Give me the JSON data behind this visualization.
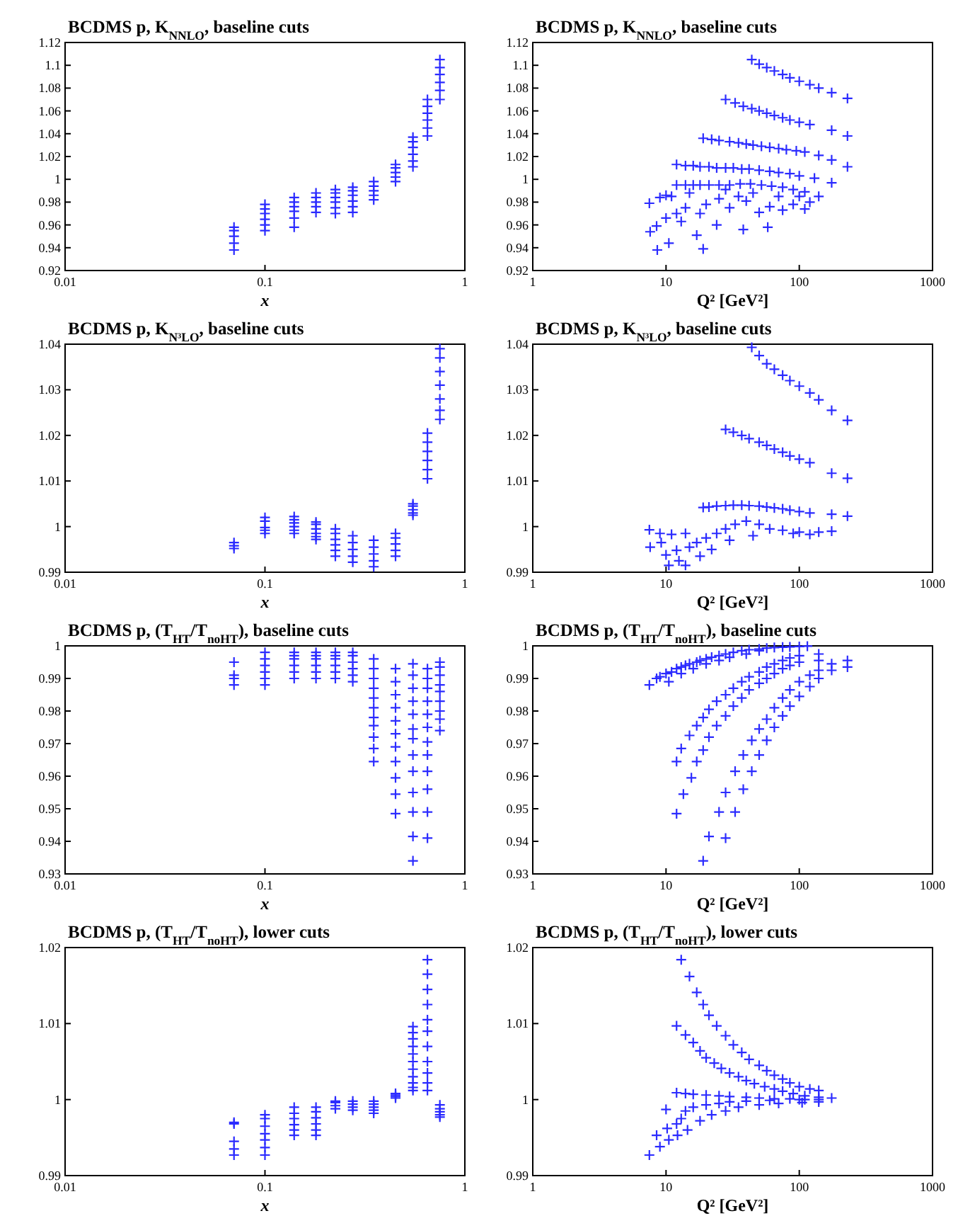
{
  "chart_data": [
    {
      "type": "scatter",
      "title": "BCDMS p, K$_{NNLO}$, baseline cuts",
      "xlabel": "x",
      "log": "x",
      "marker": "cross",
      "color": "#2b2bff",
      "xlim": [
        0.01,
        1
      ],
      "xticks": [
        0.01,
        0.1,
        1
      ],
      "ylim": [
        0.92,
        1.12
      ],
      "yticks": [
        0.92,
        0.94,
        0.96,
        0.98,
        1,
        1.02,
        1.04,
        1.06,
        1.08,
        1.1,
        1.12
      ],
      "x": [
        0.07,
        0.07,
        0.07,
        0.07,
        0.07,
        0.1,
        0.1,
        0.1,
        0.1,
        0.1,
        0.1,
        0.14,
        0.14,
        0.14,
        0.14,
        0.14,
        0.14,
        0.18,
        0.18,
        0.18,
        0.18,
        0.18,
        0.225,
        0.225,
        0.225,
        0.225,
        0.225,
        0.225,
        0.275,
        0.275,
        0.275,
        0.275,
        0.275,
        0.275,
        0.35,
        0.35,
        0.35,
        0.35,
        0.35,
        0.45,
        0.45,
        0.45,
        0.45,
        0.45,
        0.55,
        0.55,
        0.55,
        0.55,
        0.55,
        0.55,
        0.65,
        0.65,
        0.65,
        0.65,
        0.65,
        0.65,
        0.75,
        0.75,
        0.75,
        0.75,
        0.75,
        0.75
      ],
      "values": [
        0.938,
        0.944,
        0.95,
        0.955,
        0.958,
        0.955,
        0.96,
        0.965,
        0.97,
        0.974,
        0.978,
        0.958,
        0.966,
        0.972,
        0.976,
        0.98,
        0.984,
        0.971,
        0.976,
        0.98,
        0.984,
        0.988,
        0.97,
        0.975,
        0.98,
        0.984,
        0.988,
        0.991,
        0.971,
        0.976,
        0.981,
        0.986,
        0.99,
        0.993,
        0.982,
        0.986,
        0.99,
        0.994,
        0.998,
        0.998,
        1.002,
        1.006,
        1.01,
        1.013,
        1.011,
        1.016,
        1.022,
        1.028,
        1.033,
        1.037,
        1.038,
        1.045,
        1.052,
        1.058,
        1.064,
        1.07,
        1.07,
        1.078,
        1.085,
        1.092,
        1.098,
        1.105
      ]
    },
    {
      "type": "scatter",
      "title": "BCDMS p, K$_{NNLO}$, baseline cuts",
      "xlabel": "Q² [GeV²]",
      "log": "x",
      "marker": "cross",
      "color": "#2b2bff",
      "xlim": [
        1,
        1000
      ],
      "xticks": [
        1,
        10,
        100,
        1000
      ],
      "ylim": [
        0.92,
        1.12
      ],
      "yticks": [
        0.92,
        0.94,
        0.96,
        0.98,
        1,
        1.02,
        1.04,
        1.06,
        1.08,
        1.1,
        1.12
      ],
      "x": [
        44,
        50,
        57,
        65,
        75,
        85,
        100,
        120,
        140,
        175,
        230,
        28,
        33,
        38,
        44,
        50,
        57,
        65,
        75,
        85,
        100,
        120,
        175,
        230,
        19,
        22,
        25,
        30,
        35,
        40,
        45,
        52,
        60,
        70,
        80,
        95,
        110,
        140,
        175,
        230,
        12,
        14,
        16,
        18,
        21,
        24,
        28,
        32,
        37,
        42,
        50,
        60,
        70,
        85,
        100,
        130,
        175,
        10,
        12,
        14,
        16,
        18,
        21,
        25,
        30,
        36,
        43,
        52,
        62,
        75,
        90,
        110,
        140,
        7.5,
        7.6,
        8.5,
        8.6,
        9,
        10,
        10.5,
        11,
        12,
        13,
        14,
        15,
        17,
        18,
        19,
        20,
        24,
        25,
        30,
        38,
        40,
        50,
        58,
        60,
        75,
        90,
        110,
        120,
        45,
        28,
        35,
        70,
        100
      ],
      "values": [
        1.105,
        1.101,
        1.098,
        1.095,
        1.092,
        1.089,
        1.086,
        1.083,
        1.08,
        1.076,
        1.071,
        1.07,
        1.067,
        1.064,
        1.062,
        1.06,
        1.058,
        1.056,
        1.054,
        1.052,
        1.05,
        1.048,
        1.043,
        1.038,
        1.036,
        1.035,
        1.034,
        1.033,
        1.032,
        1.031,
        1.03,
        1.029,
        1.028,
        1.027,
        1.026,
        1.025,
        1.024,
        1.021,
        1.017,
        1.011,
        1.013,
        1.012,
        1.012,
        1.011,
        1.011,
        1.01,
        1.01,
        1.01,
        1.009,
        1.009,
        1.008,
        1.007,
        1.006,
        1.005,
        1.003,
        1.001,
        0.997,
        0.986,
        0.995,
        0.995,
        0.995,
        0.995,
        0.995,
        0.995,
        0.995,
        0.996,
        0.996,
        0.995,
        0.994,
        0.993,
        0.991,
        0.989,
        0.985,
        0.979,
        0.954,
        0.959,
        0.938,
        0.984,
        0.966,
        0.944,
        0.985,
        0.97,
        0.963,
        0.975,
        0.988,
        0.951,
        0.97,
        0.939,
        0.978,
        0.96,
        0.983,
        0.975,
        0.956,
        0.981,
        0.971,
        0.958,
        0.976,
        0.973,
        0.978,
        0.974,
        0.98,
        0.988,
        0.991,
        0.985,
        0.985,
        0.985
      ]
    },
    {
      "type": "scatter",
      "title": "BCDMS p, K$_{N³LO}$, baseline cuts",
      "xlabel": "x",
      "log": "x",
      "marker": "cross",
      "color": "#2b2bff",
      "xlim": [
        0.01,
        1
      ],
      "xticks": [
        0.01,
        0.1,
        1
      ],
      "ylim": [
        0.99,
        1.04
      ],
      "yticks": [
        0.99,
        1,
        1.01,
        1.02,
        1.03,
        1.04
      ],
      "x": [
        0.07,
        0.07,
        0.07,
        0.1,
        0.1,
        0.1,
        0.1,
        0.1,
        0.14,
        0.14,
        0.14,
        0.14,
        0.14,
        0.14,
        0.18,
        0.18,
        0.18,
        0.18,
        0.18,
        0.18,
        0.225,
        0.225,
        0.225,
        0.225,
        0.225,
        0.225,
        0.275,
        0.275,
        0.275,
        0.275,
        0.275,
        0.35,
        0.35,
        0.35,
        0.35,
        0.35,
        0.45,
        0.45,
        0.45,
        0.45,
        0.45,
        0.55,
        0.55,
        0.55,
        0.55,
        0.55,
        0.65,
        0.65,
        0.65,
        0.65,
        0.65,
        0.65,
        0.75,
        0.75,
        0.75,
        0.75,
        0.75,
        0.75,
        0.75
      ],
      "values": [
        0.9952,
        0.9958,
        0.9965,
        0.9985,
        0.9992,
        0.9998,
        1.0012,
        1.002,
        0.9985,
        0.9992,
        1,
        1.0008,
        1.0015,
        1.0022,
        0.9972,
        0.9978,
        0.9985,
        0.9995,
        1.0005,
        1.001,
        0.9935,
        0.9948,
        0.996,
        0.9972,
        0.9985,
        0.9995,
        0.9922,
        0.9935,
        0.995,
        0.9965,
        0.998,
        0.9912,
        0.9925,
        0.994,
        0.9955,
        0.997,
        0.9935,
        0.9948,
        0.9962,
        0.9975,
        0.9985,
        1.0025,
        1.003,
        1.0037,
        1.0045,
        1.005,
        1.0105,
        1.0125,
        1.0145,
        1.0165,
        1.0185,
        1.0205,
        1.0235,
        1.0255,
        1.028,
        1.031,
        1.034,
        1.037,
        1.039
      ]
    },
    {
      "type": "scatter",
      "title": "BCDMS p, K$_{N³LO}$, baseline cuts",
      "xlabel": "Q² [GeV²]",
      "log": "x",
      "marker": "cross",
      "color": "#2b2bff",
      "xlim": [
        1,
        1000
      ],
      "xticks": [
        1,
        10,
        100,
        1000
      ],
      "ylim": [
        0.99,
        1.04
      ],
      "yticks": [
        0.99,
        1,
        1.01,
        1.02,
        1.03,
        1.04
      ],
      "x": [
        44,
        50,
        57,
        65,
        75,
        85,
        100,
        120,
        140,
        175,
        230,
        28,
        32,
        37,
        42,
        50,
        57,
        65,
        75,
        85,
        100,
        120,
        175,
        230,
        19,
        21,
        24,
        28,
        32,
        37,
        42,
        50,
        57,
        65,
        75,
        85,
        100,
        120,
        175,
        230,
        7.5,
        7.6,
        9,
        9.2,
        10,
        10.5,
        11,
        12,
        12.5,
        14,
        15,
        17,
        20,
        24,
        28,
        33,
        40,
        50,
        60,
        75,
        100,
        140,
        175,
        30,
        45,
        90,
        120,
        14,
        18,
        22
      ],
      "values": [
        1.0393,
        1.0375,
        1.0357,
        1.0345,
        1.0332,
        1.032,
        1.0308,
        1.0293,
        1.0278,
        1.0255,
        1.0233,
        1.0213,
        1.0207,
        1.02,
        1.0193,
        1.0185,
        1.0178,
        1.017,
        1.0163,
        1.0155,
        1.0148,
        1.014,
        1.0117,
        1.0106,
        1.0042,
        1.0043,
        1.0045,
        1.0046,
        1.0047,
        1.0047,
        1.0046,
        1.0045,
        1.0043,
        1.0041,
        1.0039,
        1.0036,
        1.0033,
        1.003,
        1.0027,
        1.0023,
        0.9993,
        0.9955,
        0.9985,
        0.9965,
        0.9938,
        0.9915,
        0.9983,
        0.9948,
        0.9925,
        0.9985,
        0.9955,
        0.9965,
        0.9975,
        0.9985,
        0.9995,
        1.0005,
        1.0012,
        1.0005,
        0.9995,
        0.9992,
        0.9988,
        0.9988,
        0.999,
        0.997,
        0.998,
        0.9985,
        0.9983,
        0.9915,
        0.9935,
        0.995
      ]
    },
    {
      "type": "scatter",
      "title": "BCDMS p, (T$_{HT}$/T$_{noHT}$), baseline cuts",
      "xlabel": "x",
      "log": "x",
      "marker": "cross",
      "color": "#2b2bff",
      "xlim": [
        0.01,
        1
      ],
      "xticks": [
        0.01,
        0.1,
        1
      ],
      "ylim": [
        0.93,
        1
      ],
      "yticks": [
        0.93,
        0.94,
        0.95,
        0.96,
        0.97,
        0.98,
        0.99,
        1
      ],
      "x": [
        0.07,
        0.07,
        0.07,
        0.07,
        0.1,
        0.1,
        0.1,
        0.1,
        0.1,
        0.1,
        0.14,
        0.14,
        0.14,
        0.14,
        0.14,
        0.14,
        0.18,
        0.18,
        0.18,
        0.18,
        0.18,
        0.18,
        0.225,
        0.225,
        0.225,
        0.225,
        0.225,
        0.225,
        0.275,
        0.275,
        0.275,
        0.275,
        0.275,
        0.275,
        0.35,
        0.35,
        0.35,
        0.35,
        0.35,
        0.35,
        0.35,
        0.35,
        0.35,
        0.35,
        0.35,
        0.45,
        0.45,
        0.45,
        0.45,
        0.45,
        0.45,
        0.45,
        0.45,
        0.45,
        0.45,
        0.45,
        0.55,
        0.55,
        0.55,
        0.55,
        0.55,
        0.55,
        0.55,
        0.55,
        0.55,
        0.55,
        0.55,
        0.55,
        0.55,
        0.65,
        0.65,
        0.65,
        0.65,
        0.65,
        0.65,
        0.65,
        0.65,
        0.65,
        0.65,
        0.65,
        0.65,
        0.75,
        0.75,
        0.75,
        0.75,
        0.75,
        0.75,
        0.75,
        0.75,
        0.75
      ],
      "values": [
        0.988,
        0.99,
        0.991,
        0.995,
        0.988,
        0.99,
        0.992,
        0.994,
        0.996,
        0.998,
        0.99,
        0.992,
        0.994,
        0.996,
        0.997,
        0.998,
        0.99,
        0.992,
        0.994,
        0.996,
        0.997,
        0.998,
        0.99,
        0.992,
        0.994,
        0.996,
        0.997,
        0.998,
        0.989,
        0.991,
        0.993,
        0.995,
        0.997,
        0.998,
        0.9645,
        0.9685,
        0.972,
        0.9755,
        0.978,
        0.981,
        0.984,
        0.987,
        0.99,
        0.993,
        0.996,
        0.9485,
        0.9545,
        0.9595,
        0.9645,
        0.969,
        0.973,
        0.977,
        0.981,
        0.985,
        0.989,
        0.993,
        0.934,
        0.9415,
        0.949,
        0.955,
        0.9615,
        0.9665,
        0.9715,
        0.9745,
        0.979,
        0.983,
        0.987,
        0.991,
        0.9945,
        0.941,
        0.949,
        0.956,
        0.9615,
        0.9665,
        0.9705,
        0.975,
        0.979,
        0.983,
        0.987,
        0.99,
        0.993,
        0.974,
        0.9775,
        0.98,
        0.983,
        0.986,
        0.988,
        0.991,
        0.9935,
        0.995
      ]
    },
    {
      "type": "scatter",
      "title": "BCDMS p, (T$_{HT}$/T$_{noHT}$), baseline cuts",
      "xlabel": "Q² [GeV²]",
      "log": "x",
      "marker": "cross",
      "color": "#2b2bff",
      "xlim": [
        1,
        1000
      ],
      "xticks": [
        1,
        10,
        100,
        1000
      ],
      "ylim": [
        0.93,
        1
      ],
      "yticks": [
        0.93,
        0.94,
        0.95,
        0.96,
        0.97,
        0.98,
        0.99,
        1
      ],
      "x": [
        7.5,
        8.5,
        9,
        10,
        10.5,
        11,
        12,
        13,
        14,
        15,
        17,
        18,
        20,
        22,
        25,
        28,
        32,
        37,
        42,
        50,
        57,
        65,
        75,
        85,
        100,
        115,
        13,
        16,
        20,
        25,
        30,
        40,
        50,
        12,
        13,
        15,
        17,
        19,
        21,
        24,
        28,
        32,
        37,
        42,
        50,
        57,
        65,
        75,
        85,
        100,
        140,
        12,
        13.5,
        15.5,
        17,
        19,
        21,
        24,
        28,
        32,
        37,
        42,
        50,
        57,
        65,
        75,
        85,
        100,
        140,
        19,
        21,
        25,
        28,
        33,
        38,
        44,
        50,
        57,
        65,
        75,
        85,
        100,
        120,
        140,
        175,
        230,
        28,
        33,
        38,
        44,
        50,
        57,
        65,
        75,
        85,
        100,
        120,
        140,
        175,
        230
      ],
      "values": [
        0.988,
        0.99,
        0.9905,
        0.9915,
        0.989,
        0.992,
        0.993,
        0.9935,
        0.994,
        0.9945,
        0.995,
        0.9955,
        0.996,
        0.9965,
        0.997,
        0.9975,
        0.998,
        0.9985,
        0.9988,
        0.999,
        0.9993,
        0.9995,
        0.9996,
        0.9997,
        0.9998,
        0.9999,
        0.9915,
        0.993,
        0.9945,
        0.9955,
        0.9965,
        0.9975,
        0.9985,
        0.9645,
        0.9685,
        0.9725,
        0.9755,
        0.978,
        0.9805,
        0.983,
        0.985,
        0.987,
        0.989,
        0.9905,
        0.992,
        0.9935,
        0.9945,
        0.9955,
        0.9963,
        0.997,
        0.9975,
        0.9485,
        0.9545,
        0.9595,
        0.9645,
        0.968,
        0.972,
        0.9755,
        0.9785,
        0.9815,
        0.984,
        0.9865,
        0.9885,
        0.99,
        0.9915,
        0.993,
        0.994,
        0.995,
        0.9955,
        0.934,
        0.9415,
        0.949,
        0.955,
        0.9615,
        0.9665,
        0.971,
        0.9745,
        0.9775,
        0.981,
        0.984,
        0.9865,
        0.989,
        0.991,
        0.9925,
        0.9945,
        0.9955,
        0.941,
        0.949,
        0.956,
        0.9615,
        0.9665,
        0.971,
        0.975,
        0.9785,
        0.9815,
        0.9845,
        0.9875,
        0.99,
        0.9925,
        0.9935
      ]
    },
    {
      "type": "scatter",
      "title": "BCDMS p, (T$_{HT}$/T$_{noHT}$), lower cuts",
      "xlabel": "x",
      "log": "x",
      "marker": "cross",
      "color": "#2b2bff",
      "xlim": [
        0.01,
        1
      ],
      "xticks": [
        0.01,
        0.1,
        1
      ],
      "ylim": [
        0.99,
        1.02
      ],
      "yticks": [
        0.99,
        1,
        1.01,
        1.02
      ],
      "x": [
        0.07,
        0.07,
        0.07,
        0.07,
        0.07,
        0.1,
        0.1,
        0.1,
        0.1,
        0.1,
        0.1,
        0.1,
        0.14,
        0.14,
        0.14,
        0.14,
        0.14,
        0.14,
        0.18,
        0.18,
        0.18,
        0.18,
        0.18,
        0.18,
        0.225,
        0.225,
        0.225,
        0.225,
        0.275,
        0.275,
        0.275,
        0.275,
        0.35,
        0.35,
        0.35,
        0.35,
        0.35,
        0.45,
        0.45,
        0.45,
        0.45,
        0.55,
        0.55,
        0.55,
        0.55,
        0.55,
        0.55,
        0.55,
        0.55,
        0.55,
        0.55,
        0.55,
        0.65,
        0.65,
        0.65,
        0.65,
        0.65,
        0.65,
        0.65,
        0.65,
        0.65,
        0.65,
        0.65,
        0.75,
        0.75,
        0.75,
        0.75,
        0.75
      ],
      "values": [
        0.9927,
        0.9935,
        0.9945,
        0.9968,
        0.997,
        0.9927,
        0.9937,
        0.9947,
        0.9955,
        0.9965,
        0.9975,
        0.998,
        0.9953,
        0.996,
        0.9967,
        0.9975,
        0.9982,
        0.999,
        0.9953,
        0.996,
        0.9968,
        0.9976,
        0.9984,
        0.999,
        0.9988,
        0.9992,
        0.9996,
        0.9998,
        0.9986,
        0.999,
        0.9994,
        0.9998,
        0.9982,
        0.9986,
        0.999,
        0.9994,
        0.9998,
        1.0002,
        1.0004,
        1.0006,
        1.0008,
        1.0012,
        1.0016,
        1.0022,
        1.003,
        1.004,
        1.005,
        1.006,
        1.007,
        1.008,
        1.0088,
        1.0096,
        1.0012,
        1.0022,
        1.0035,
        1.005,
        1.007,
        1.009,
        1.0105,
        1.0125,
        1.0145,
        1.0165,
        1.0184,
        0.9977,
        0.998,
        0.9984,
        0.9988,
        0.9993
      ]
    },
    {
      "type": "scatter",
      "title": "BCDMS p, (T$_{HT}$/T$_{noHT}$), lower cuts",
      "xlabel": "Q² [GeV²]",
      "log": "x",
      "marker": "cross",
      "color": "#2b2bff",
      "xlim": [
        1,
        1000
      ],
      "xticks": [
        1,
        10,
        100,
        1000
      ],
      "ylim": [
        0.99,
        1.02
      ],
      "yticks": [
        0.99,
        1,
        1.01,
        1.02
      ],
      "x": [
        13,
        15,
        17,
        19,
        21,
        24,
        28,
        32,
        37,
        42,
        50,
        57,
        65,
        75,
        85,
        100,
        120,
        140,
        12,
        14,
        16,
        18,
        20,
        23,
        26,
        30,
        35,
        40,
        46,
        55,
        65,
        75,
        90,
        110,
        140,
        12,
        14,
        16,
        20,
        25,
        30,
        40,
        50,
        65,
        85,
        110,
        140,
        175,
        7.5,
        8.5,
        9,
        10,
        10.2,
        10.5,
        12,
        12.2,
        13,
        14,
        16,
        20,
        25,
        30,
        40,
        60,
        100,
        14.5,
        18,
        22,
        28,
        35,
        50,
        70,
        105,
        140
      ],
      "values": [
        1.0184,
        1.0162,
        1.0141,
        1.0125,
        1.0111,
        1.0097,
        1.0084,
        1.0072,
        1.0062,
        1.0053,
        1.0045,
        1.0038,
        1.0032,
        1.0027,
        1.0022,
        1.0017,
        1.0014,
        1.0012,
        1.0097,
        1.0085,
        1.0075,
        1.0064,
        1.0055,
        1.0048,
        1.0041,
        1.0035,
        1.003,
        1.0025,
        1.0021,
        1.0017,
        1.0014,
        1.0011,
        1.0008,
        1.0005,
        1.0003,
        1.0009,
        1.0008,
        1.0007,
        1.0006,
        1.0005,
        1.0004,
        1.0003,
        1.0002,
        1.0001,
        1.0001,
        1,
        1,
        1.0002,
        0.9927,
        0.9953,
        0.9938,
        0.9987,
        0.9962,
        0.9947,
        0.9968,
        0.9953,
        0.9975,
        0.9985,
        0.999,
        0.9993,
        0.9995,
        0.9997,
        0.9998,
        0.9999,
        1,
        0.996,
        0.9972,
        0.998,
        0.9985,
        0.999,
        0.9993,
        0.9995,
        0.9996,
        0.9997
      ]
    }
  ]
}
